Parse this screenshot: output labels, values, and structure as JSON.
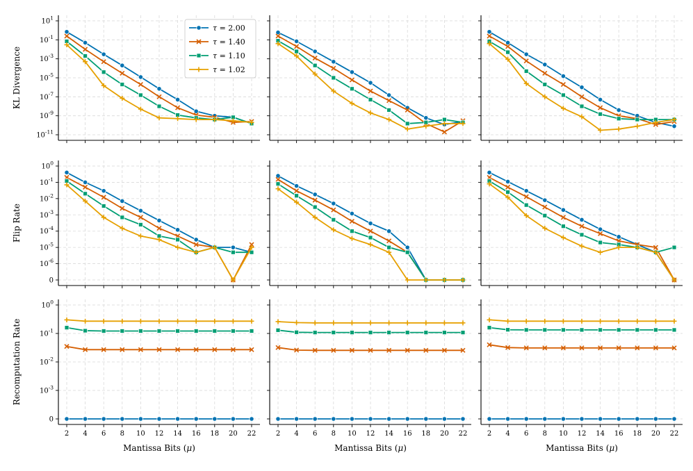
{
  "colors": {
    "tau_2_00": "#0072b2",
    "tau_1_40": "#d55e00",
    "tau_1_10": "#009e73",
    "tau_1_02": "#e6a000"
  },
  "legend": [
    {
      "key": "tau_2_00",
      "label": "τ = 2.00",
      "marker": "circle"
    },
    {
      "key": "tau_1_40",
      "label": "τ = 1.40",
      "marker": "x"
    },
    {
      "key": "tau_1_10",
      "label": "τ = 1.10",
      "marker": "square"
    },
    {
      "key": "tau_1_02",
      "label": "τ = 1.02",
      "marker": "plus"
    }
  ],
  "xlabel": "Mantissa Bits (μ)",
  "row_labels": [
    "KL Divergence",
    "Flip Rate",
    "Recomputation Rate"
  ],
  "chart_data": [
    {
      "type": "line",
      "row": 0,
      "col": 0,
      "yscale": "log",
      "ylabel": "KL Divergence",
      "ylim_exp": [
        -11,
        1
      ],
      "y_tick_labels": [
        "10^1",
        "10^-1",
        "10^-3",
        "10^-5",
        "10^-7",
        "10^-9",
        "10^-11"
      ],
      "x": [
        2,
        4,
        6,
        8,
        10,
        12,
        14,
        16,
        18,
        20,
        22
      ],
      "series": [
        {
          "key": "tau_2_00",
          "values": [
            0.7,
            0.05,
            0.003,
            0.0002,
            1.2e-05,
            7e-07,
            5e-08,
            3e-09,
            1e-09,
            7e-10,
            1.5e-10
          ]
        },
        {
          "key": "tau_1_40",
          "values": [
            0.25,
            0.01,
            0.0005,
            3e-05,
            2e-06,
            1e-07,
            7e-09,
            1.2e-09,
            7e-10,
            2e-10,
            2.5e-10
          ]
        },
        {
          "key": "tau_1_10",
          "values": [
            0.07,
            0.002,
            4e-05,
            2e-06,
            1.5e-07,
            1e-08,
            1.2e-09,
            6e-10,
            4e-10,
            7e-10,
            1.5e-10
          ]
        },
        {
          "key": "tau_1_02",
          "values": [
            0.03,
            0.0005,
            1.5e-06,
            7e-08,
            5e-09,
            6e-10,
            5e-10,
            4e-10,
            4e-10,
            3e-10,
            2e-10
          ]
        }
      ]
    },
    {
      "type": "line",
      "row": 0,
      "col": 1,
      "yscale": "log",
      "ylim_exp": [
        -11,
        1
      ],
      "x": [
        2,
        4,
        6,
        8,
        10,
        12,
        14,
        16,
        18,
        20,
        22
      ],
      "series": [
        {
          "key": "tau_2_00",
          "values": [
            0.6,
            0.07,
            0.006,
            0.0005,
            4e-05,
            3e-06,
            1.5e-07,
            7e-09,
            6e-10,
            1.2e-10,
            2.5e-10
          ]
        },
        {
          "key": "tau_1_40",
          "values": [
            0.25,
            0.02,
            0.0012,
            0.0001,
            6e-06,
            4e-07,
            4e-08,
            4e-09,
            1.5e-10,
            2e-11,
            3e-10
          ]
        },
        {
          "key": "tau_1_10",
          "values": [
            0.08,
            0.006,
            0.0002,
            1e-05,
            7e-07,
            5e-08,
            4e-09,
            1.5e-10,
            2e-10,
            4e-10,
            2e-10
          ]
        },
        {
          "key": "tau_1_02",
          "values": [
            0.04,
            0.002,
            2.5e-05,
            4e-07,
            2e-08,
            2e-09,
            4e-10,
            4e-11,
            8e-11,
            1.5e-10,
            1.5e-10
          ]
        }
      ]
    },
    {
      "type": "line",
      "row": 0,
      "col": 2,
      "yscale": "log",
      "ylim_exp": [
        -11,
        1
      ],
      "x": [
        2,
        4,
        6,
        8,
        10,
        12,
        14,
        16,
        18,
        20,
        22
      ],
      "series": [
        {
          "key": "tau_2_00",
          "values": [
            0.7,
            0.05,
            0.003,
            0.00025,
            1.5e-05,
            1e-06,
            5e-08,
            4e-09,
            1e-09,
            2e-10,
            8e-11
          ]
        },
        {
          "key": "tau_1_40",
          "values": [
            0.25,
            0.02,
            0.0006,
            3e-05,
            2e-06,
            1e-07,
            7e-09,
            1e-09,
            5e-10,
            1.2e-10,
            2.5e-10
          ]
        },
        {
          "key": "tau_1_10",
          "values": [
            0.07,
            0.005,
            5e-05,
            2e-06,
            1.5e-07,
            1e-08,
            1.5e-09,
            5e-10,
            4e-10,
            4e-10,
            4e-10
          ]
        },
        {
          "key": "tau_1_02",
          "values": [
            0.04,
            0.0009,
            2.5e-06,
            1e-07,
            6e-09,
            8e-10,
            3e-11,
            4e-11,
            8e-11,
            2e-10,
            4e-10
          ]
        }
      ]
    },
    {
      "type": "line",
      "row": 1,
      "col": 0,
      "yscale": "symlog",
      "ylabel": "Flip Rate",
      "ylim_exp": [
        -6,
        0
      ],
      "y_tick_labels": [
        "10^0",
        "10^-1",
        "10^-2",
        "10^-3",
        "10^-4",
        "10^-5",
        "10^-6",
        "0"
      ],
      "x": [
        2,
        4,
        6,
        8,
        10,
        12,
        14,
        16,
        18,
        20,
        22
      ],
      "series": [
        {
          "key": "tau_2_00",
          "values": [
            0.4,
            0.1,
            0.03,
            0.007,
            0.0018,
            0.00045,
            0.00012,
            3e-05,
            1e-05,
            1e-05,
            5e-06
          ]
        },
        {
          "key": "tau_1_40",
          "values": [
            0.2,
            0.05,
            0.012,
            0.0025,
            0.0007,
            0.00015,
            5e-05,
            1.5e-05,
            1e-05,
            0,
            1.5e-05
          ]
        },
        {
          "key": "tau_1_10",
          "values": [
            0.12,
            0.02,
            0.0035,
            0.0007,
            0.00025,
            5e-05,
            3e-05,
            5e-06,
            1e-05,
            5e-06,
            5e-06
          ]
        },
        {
          "key": "tau_1_02",
          "values": [
            0.07,
            0.007,
            0.0007,
            0.00015,
            5e-05,
            3e-05,
            1e-05,
            5e-06,
            1e-05,
            0,
            1e-05
          ]
        }
      ]
    },
    {
      "type": "line",
      "row": 1,
      "col": 1,
      "yscale": "symlog",
      "ylim_exp": [
        -6,
        0
      ],
      "x": [
        2,
        4,
        6,
        8,
        10,
        12,
        14,
        16,
        18,
        20,
        22
      ],
      "series": [
        {
          "key": "tau_2_00",
          "values": [
            0.25,
            0.06,
            0.018,
            0.005,
            0.0012,
            0.0003,
            0.0001,
            1e-05,
            0,
            0,
            0
          ]
        },
        {
          "key": "tau_1_40",
          "values": [
            0.15,
            0.03,
            0.008,
            0.002,
            0.0004,
            0.0001,
            2.5e-05,
            5e-06,
            0,
            0,
            0
          ]
        },
        {
          "key": "tau_1_10",
          "values": [
            0.08,
            0.015,
            0.003,
            0.0005,
            0.0001,
            4e-05,
            1e-05,
            5e-06,
            0,
            0,
            0
          ]
        },
        {
          "key": "tau_1_02",
          "values": [
            0.04,
            0.006,
            0.0007,
            0.00012,
            3.5e-05,
            1.5e-05,
            5e-06,
            0,
            0,
            0,
            0
          ]
        }
      ]
    },
    {
      "type": "line",
      "row": 1,
      "col": 2,
      "yscale": "symlog",
      "ylim_exp": [
        -6,
        0
      ],
      "x": [
        2,
        4,
        6,
        8,
        10,
        12,
        14,
        16,
        18,
        20,
        22
      ],
      "series": [
        {
          "key": "tau_2_00",
          "values": [
            0.4,
            0.11,
            0.03,
            0.008,
            0.002,
            0.0005,
            0.00013,
            4.5e-05,
            1.5e-05,
            5e-06,
            0
          ]
        },
        {
          "key": "tau_1_40",
          "values": [
            0.2,
            0.05,
            0.013,
            0.003,
            0.0007,
            0.0002,
            7e-05,
            2.5e-05,
            1.5e-05,
            1e-05,
            0
          ]
        },
        {
          "key": "tau_1_10",
          "values": [
            0.12,
            0.025,
            0.004,
            0.0009,
            0.0002,
            6e-05,
            2e-05,
            1.5e-05,
            1e-05,
            5e-06,
            1e-05
          ]
        },
        {
          "key": "tau_1_02",
          "values": [
            0.08,
            0.012,
            0.0009,
            0.00015,
            4e-05,
            1.2e-05,
            5e-06,
            1e-05,
            1e-05,
            5e-06,
            0
          ]
        }
      ]
    },
    {
      "type": "line",
      "row": 2,
      "col": 0,
      "yscale": "symlog",
      "ylabel": "Recomputation Rate",
      "ylim_exp": [
        -3,
        0
      ],
      "y_tick_labels": [
        "10^0",
        "10^-1",
        "10^-2",
        "10^-3",
        "0"
      ],
      "x": [
        2,
        4,
        6,
        8,
        10,
        12,
        14,
        16,
        18,
        20,
        22
      ],
      "series": [
        {
          "key": "tau_2_00",
          "values": [
            0,
            0,
            0,
            0,
            0,
            0,
            0,
            0,
            0,
            0,
            0
          ]
        },
        {
          "key": "tau_1_40",
          "values": [
            0.035,
            0.027,
            0.027,
            0.027,
            0.027,
            0.027,
            0.027,
            0.027,
            0.027,
            0.027,
            0.027
          ]
        },
        {
          "key": "tau_1_10",
          "values": [
            0.16,
            0.125,
            0.122,
            0.122,
            0.122,
            0.122,
            0.122,
            0.122,
            0.122,
            0.122,
            0.122
          ]
        },
        {
          "key": "tau_1_02",
          "values": [
            0.3,
            0.27,
            0.27,
            0.27,
            0.27,
            0.27,
            0.27,
            0.27,
            0.27,
            0.27,
            0.27
          ]
        }
      ]
    },
    {
      "type": "line",
      "row": 2,
      "col": 1,
      "yscale": "symlog",
      "ylim_exp": [
        -3,
        0
      ],
      "x": [
        2,
        4,
        6,
        8,
        10,
        12,
        14,
        16,
        18,
        20,
        22
      ],
      "series": [
        {
          "key": "tau_2_00",
          "values": [
            0,
            0,
            0,
            0,
            0,
            0,
            0,
            0,
            0,
            0,
            0
          ]
        },
        {
          "key": "tau_1_40",
          "values": [
            0.032,
            0.026,
            0.0255,
            0.0255,
            0.0255,
            0.0255,
            0.0255,
            0.0255,
            0.0255,
            0.0255,
            0.0255
          ]
        },
        {
          "key": "tau_1_10",
          "values": [
            0.13,
            0.11,
            0.108,
            0.108,
            0.108,
            0.108,
            0.108,
            0.108,
            0.108,
            0.108,
            0.108
          ]
        },
        {
          "key": "tau_1_02",
          "values": [
            0.26,
            0.24,
            0.235,
            0.235,
            0.235,
            0.235,
            0.235,
            0.235,
            0.235,
            0.235,
            0.235
          ]
        }
      ]
    },
    {
      "type": "line",
      "row": 2,
      "col": 2,
      "yscale": "symlog",
      "ylim_exp": [
        -3,
        0
      ],
      "x": [
        2,
        4,
        6,
        8,
        10,
        12,
        14,
        16,
        18,
        20,
        22
      ],
      "series": [
        {
          "key": "tau_2_00",
          "values": [
            0,
            0,
            0,
            0,
            0,
            0,
            0,
            0,
            0,
            0,
            0
          ]
        },
        {
          "key": "tau_1_40",
          "values": [
            0.04,
            0.032,
            0.031,
            0.031,
            0.031,
            0.031,
            0.031,
            0.031,
            0.031,
            0.031,
            0.031
          ]
        },
        {
          "key": "tau_1_10",
          "values": [
            0.16,
            0.135,
            0.133,
            0.133,
            0.133,
            0.133,
            0.133,
            0.133,
            0.133,
            0.133,
            0.133
          ]
        },
        {
          "key": "tau_1_02",
          "values": [
            0.3,
            0.27,
            0.27,
            0.27,
            0.27,
            0.27,
            0.27,
            0.27,
            0.27,
            0.27,
            0.27
          ]
        }
      ]
    }
  ]
}
